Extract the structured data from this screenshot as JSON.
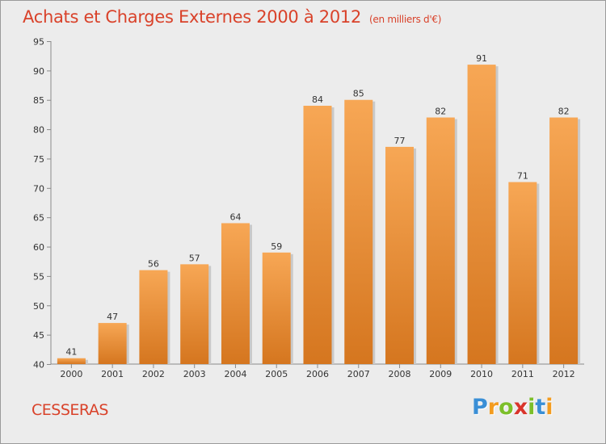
{
  "title": "Achats et Charges Externes 2000 à 2012",
  "subtitle": "(en milliers d'€)",
  "town": "CESSERAS",
  "logo": {
    "letters": [
      "P",
      "r",
      "o",
      "x",
      "i",
      "t",
      "i"
    ],
    "colors": [
      "#3a8fd6",
      "#f39c1f",
      "#7cbf2a",
      "#d9342b",
      "#7cbf2a",
      "#3a8fd6",
      "#f39c1f"
    ]
  },
  "colors": {
    "title": "#d9422a",
    "bar_top": "#f7a755",
    "bar_bottom": "#d5761f",
    "background": "#ececec"
  },
  "chart_data": {
    "type": "bar",
    "title": "Achats et Charges Externes 2000 à 2012",
    "categories": [
      "2000",
      "2001",
      "2002",
      "2003",
      "2004",
      "2005",
      "2006",
      "2007",
      "2008",
      "2009",
      "2010",
      "2011",
      "2012"
    ],
    "values": [
      41,
      47,
      56,
      57,
      64,
      59,
      84,
      85,
      77,
      82,
      91,
      71,
      82
    ],
    "xlabel": "",
    "ylabel": "",
    "ylim": [
      40,
      95
    ],
    "yticks": [
      40,
      45,
      50,
      55,
      60,
      65,
      70,
      75,
      80,
      85,
      90,
      95
    ],
    "grid": false,
    "data_labels": true
  }
}
